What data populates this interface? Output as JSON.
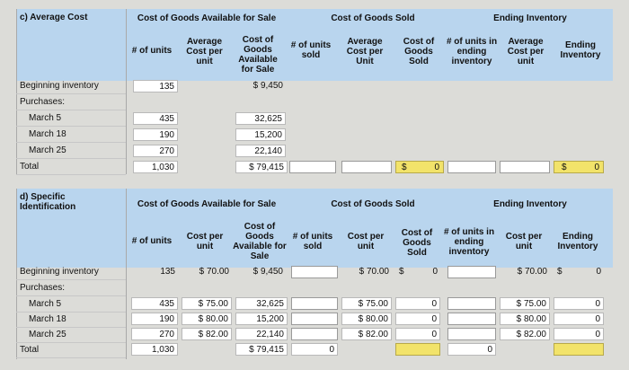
{
  "part_c": {
    "section_label": "c) Average Cost",
    "group_headers": {
      "available": "Cost of Goods Available for Sale",
      "sold": "Cost of Goods Sold",
      "ending": "Ending Inventory"
    },
    "col_headers": {
      "units": "# of units",
      "avg_cost": "Average Cost per unit",
      "cogafs": "Cost of Goods Available for Sale",
      "units_sold": "# of units sold",
      "avg_cost_sold": "Average Cost per Unit",
      "cogs": "Cost of Goods Sold",
      "units_end": "# of units in ending inventory",
      "avg_cost_end": "Average Cost per unit",
      "ending_inv": "Ending Inventory"
    },
    "rows": [
      {
        "label": "Beginning inventory",
        "units": "135",
        "cogafs": "$ 9,450"
      },
      {
        "label": "Purchases:"
      },
      {
        "label": "March 5",
        "units": "435",
        "cogafs": "32,625"
      },
      {
        "label": "March 18",
        "units": "190",
        "cogafs": "15,200"
      },
      {
        "label": "March 25",
        "units": "270",
        "cogafs": "22,140"
      },
      {
        "label": "Total",
        "units": "1,030",
        "cogafs": "$ 79,415",
        "cogs_sym": "$",
        "cogs": "0",
        "end_sym": "$",
        "end": "0"
      }
    ]
  },
  "part_d": {
    "section_label": "d) Specific Identification",
    "group_headers": {
      "available": "Cost of Goods Available for Sale",
      "sold": "Cost of Goods Sold",
      "ending": "Ending Inventory"
    },
    "col_headers": {
      "units": "# of units",
      "cost_per_unit": "Cost per unit",
      "cogafs": "Cost of Goods Available for Sale",
      "units_sold": "# of units sold",
      "cost_per_unit_sold": "Cost per unit",
      "cogs": "Cost of Goods Sold",
      "units_end": "# of units in ending inventory",
      "cost_per_unit_end": "Cost per unit",
      "ending_inv": "Ending Inventory"
    },
    "rows": [
      {
        "label": "Beginning inventory",
        "units": "135",
        "cpu": "$  70.00",
        "cogafs": "$ 9,450",
        "cpu_sold": "$  70.00",
        "cogs": "$",
        "cogs_val": "0",
        "cpu_end": "$  70.00",
        "end": "$",
        "end_val": "0"
      },
      {
        "label": "Purchases:"
      },
      {
        "label": "March 5",
        "units": "435",
        "cpu": "$  75.00",
        "cogafs": "32,625",
        "cpu_sold": "$  75.00",
        "cogs_val": "0",
        "cpu_end": "$  75.00",
        "end_val": "0"
      },
      {
        "label": "March 18",
        "units": "190",
        "cpu": "$  80.00",
        "cogafs": "15,200",
        "cpu_sold": "$  80.00",
        "cogs_val": "0",
        "cpu_end": "$  80.00",
        "end_val": "0"
      },
      {
        "label": "March 25",
        "units": "270",
        "cpu": "$  82.00",
        "cogafs": "22,140",
        "cpu_sold": "$  82.00",
        "cogs_val": "0",
        "cpu_end": "$  82.00",
        "end_val": "0"
      },
      {
        "label": "Total",
        "units": "1,030",
        "cogafs": "$ 79,415",
        "units_sold": "0",
        "units_end": "0"
      }
    ]
  }
}
